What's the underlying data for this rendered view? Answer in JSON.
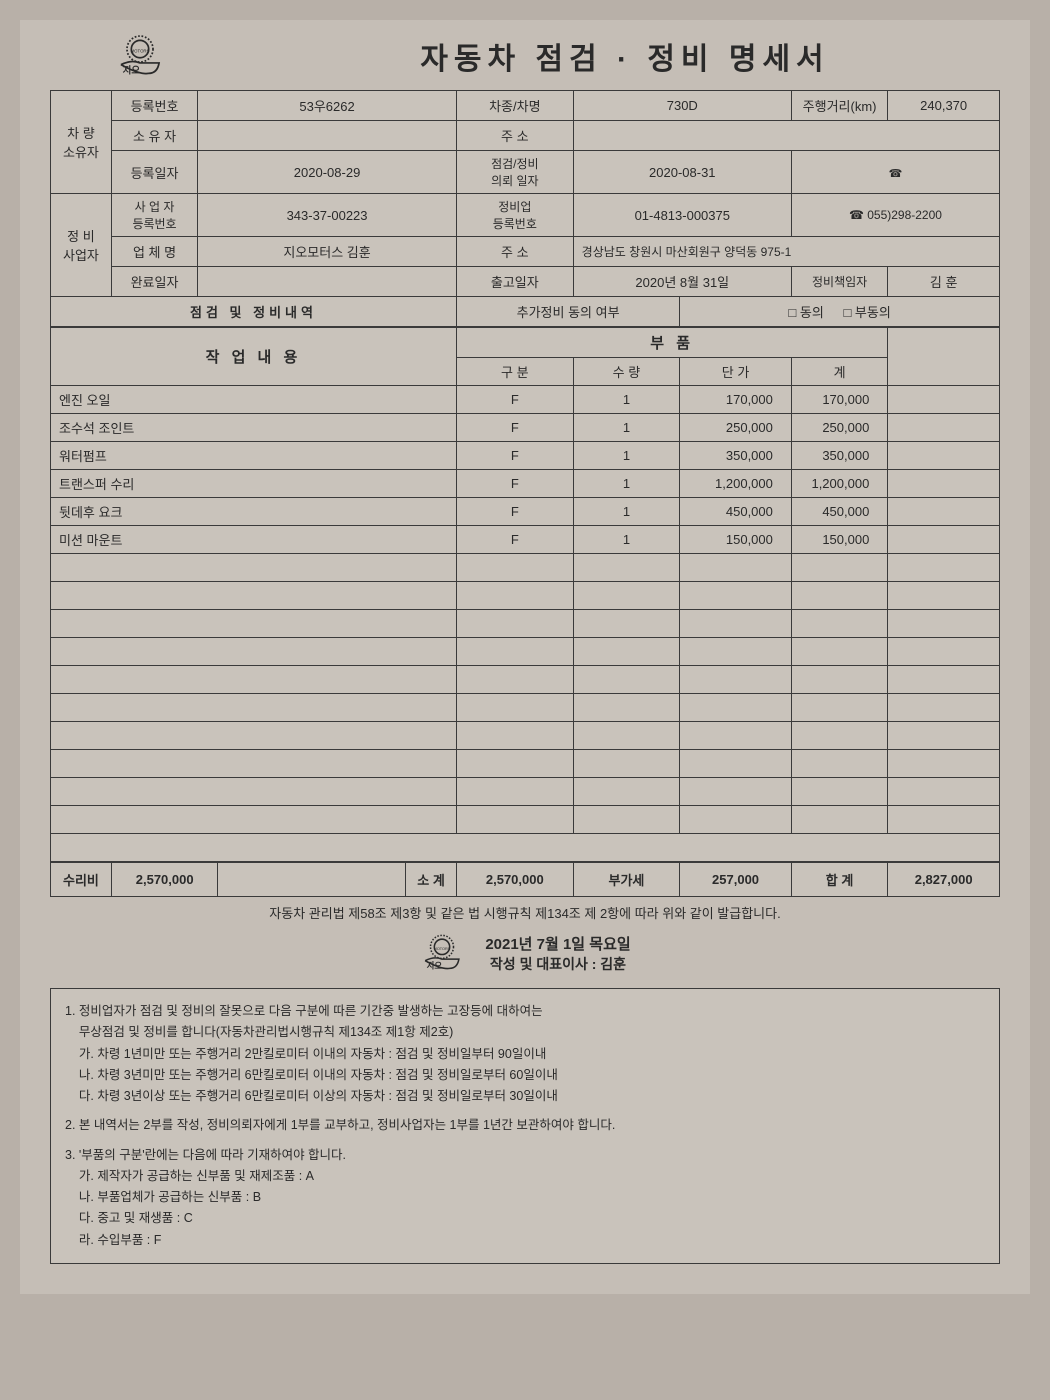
{
  "title": "자동차 점검 · 정비 명세서",
  "logo_text": "지오 MOTORS",
  "vehicle": {
    "section_label": "차 량\n소유자",
    "reg_no_label": "등록번호",
    "reg_no": "53우6262",
    "model_label": "차종/차명",
    "model": "730D",
    "mileage_label": "주행거리(km)",
    "mileage": "240,370",
    "owner_label": "소 유 자",
    "owner": "",
    "address_label": "주  소",
    "address": "",
    "reg_date_label": "등록일자",
    "reg_date": "2020-08-29",
    "request_date_label": "점검/정비\n의뢰 일자",
    "request_date": "2020-08-31",
    "phone_icon": "☎"
  },
  "shop": {
    "section_label": "정 비\n사업자",
    "biz_no_label": "사 업 자\n등록번호",
    "biz_no": "343-37-00223",
    "shop_no_label": "정비업\n등록번호",
    "shop_no": "01-4813-000375",
    "phone": "☎ 055)298-2200",
    "name_label": "업 체 명",
    "name": "지오모터스 김훈",
    "address_label": "주  소",
    "address": "경상남도 창원시 마산회원구 양덕동 975-1",
    "complete_label": "완료일자",
    "complete": "",
    "delivery_label": "출고일자",
    "delivery": "2020년 8월 31일",
    "manager_label": "정비책임자",
    "manager": "김 훈"
  },
  "work_section": {
    "header": "점검 및 정비내역",
    "extra_label": "추가정비 동의 여부",
    "agree": "□ 동의",
    "disagree": "□ 부동의",
    "work_label": "작 업 내 용",
    "parts_label": "부  품",
    "col_type": "구  분",
    "col_qty": "수  량",
    "col_price": "단 가",
    "col_sum": "계"
  },
  "items": [
    {
      "desc": "엔진 오일",
      "type": "F",
      "qty": "1",
      "price": "170,000",
      "sum": "170,000"
    },
    {
      "desc": "조수석 조인트",
      "type": "F",
      "qty": "1",
      "price": "250,000",
      "sum": "250,000"
    },
    {
      "desc": "워터펌프",
      "type": "F",
      "qty": "1",
      "price": "350,000",
      "sum": "350,000"
    },
    {
      "desc": "트랜스퍼 수리",
      "type": "F",
      "qty": "1",
      "price": "1,200,000",
      "sum": "1,200,000"
    },
    {
      "desc": "뒷데후 요크",
      "type": "F",
      "qty": "1",
      "price": "450,000",
      "sum": "450,000"
    },
    {
      "desc": "미션 마운트",
      "type": "F",
      "qty": "1",
      "price": "150,000",
      "sum": "150,000"
    }
  ],
  "empty_rows": 10,
  "totals": {
    "repair_label": "수리비",
    "repair": "2,570,000",
    "subtotal_label": "소  계",
    "subtotal": "2,570,000",
    "vat_label": "부가세",
    "vat": "257,000",
    "total_label": "합  계",
    "total": "2,827,000"
  },
  "legal_line": "자동차 관리법 제58조 제3항 및 같은 법 시행규칙 제134조 제 2항에 따라 위와 같이 발급합니다.",
  "issue": {
    "date": "2021년 7월 1일 목요일",
    "rep_label": "작성 및 대표이사 : 김훈"
  },
  "footer": {
    "l1": "1. 정비업자가 점검 및 정비의 잘못으로 다음 구분에 따른 기간중 발생하는 고장등에 대하여는",
    "l1b": "    무상점검 및 정비를 합니다(자동차관리법시행규칙 제134조 제1항 제2호)",
    "l1c": "    가. 차령 1년미만 또는 주행거리 2만킬로미터 이내의 자동차 : 점검 및 정비일부터 90일이내",
    "l1d": "    나. 차령 3년미만 또는 주행거리 6만킬로미터 이내의 자동차 : 점검 및 정비일로부터 60일이내",
    "l1e": "    다. 차령 3년이상 또는 주행거리 6만킬로미터 이상의 자동차 : 점검 및 정비일로부터 30일이내",
    "l2": "2. 본 내역서는 2부를 작성, 정비의뢰자에게 1부를 교부하고, 정비사업자는 1부를 1년간 보관하여야 합니다.",
    "l3": "3. '부품의 구분'란에는 다음에 따라 기재하여야 합니다.",
    "l3a": "    가. 제작자가 공급하는 신부품 및 재제조품 : A",
    "l3b": "    나. 부품업체가 공급하는 신부품 : B",
    "l3c": "    다. 중고 및 재생품 : C",
    "l3d": "    라. 수입부품 : F"
  }
}
